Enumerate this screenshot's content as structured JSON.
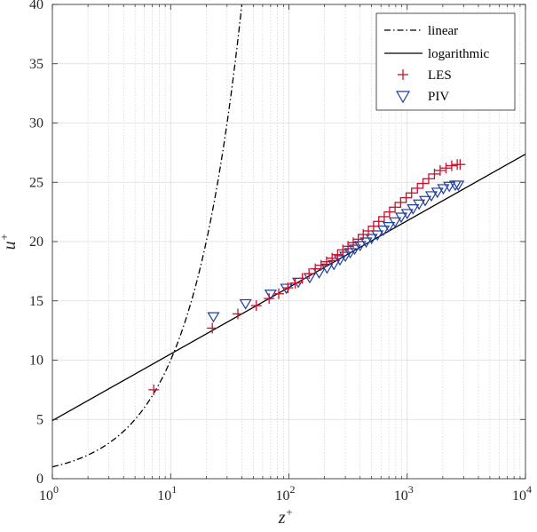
{
  "chart_data": {
    "type": "scatter",
    "xscale": "log",
    "xlim": [
      1,
      10000
    ],
    "ylim": [
      0,
      40
    ],
    "xlabel": "z",
    "xlabel_sup": "+",
    "ylabel": "u",
    "ylabel_sup": "+",
    "x_tick_exponents": [
      0,
      1,
      2,
      3,
      4
    ],
    "x_tick_base": "10",
    "y_ticks": [
      0,
      5,
      10,
      15,
      20,
      25,
      30,
      35,
      40
    ],
    "grid": true,
    "legend_position": "top-right",
    "colors": {
      "les": "#c8102e",
      "piv": "#1f3f9f",
      "linear": "#000000",
      "logarithmic": "#000000"
    },
    "series": [
      {
        "name": "linear",
        "kind": "line",
        "style": "dash-dot",
        "law": "u = z",
        "x_range": [
          1,
          40
        ]
      },
      {
        "name": "logarithmic",
        "kind": "line",
        "style": "solid",
        "law": "u = 2.44 ln(z) + 4.9",
        "x_range": [
          1,
          10000
        ]
      },
      {
        "name": "LES",
        "kind": "marker",
        "marker": "plus",
        "points": [
          [
            7.2,
            7.5
          ],
          [
            22.5,
            12.7
          ],
          [
            37,
            13.9
          ],
          [
            53,
            14.6
          ],
          [
            68,
            15.2
          ],
          [
            82,
            15.6
          ],
          [
            98,
            16.1
          ],
          [
            113,
            16.5
          ],
          [
            130,
            16.9
          ],
          [
            148,
            17.3
          ],
          [
            167,
            17.7
          ],
          [
            187,
            18.0
          ],
          [
            208,
            18.3
          ],
          [
            232,
            18.6
          ],
          [
            258,
            18.9
          ],
          [
            286,
            19.3
          ],
          [
            316,
            19.6
          ],
          [
            350,
            19.9
          ],
          [
            386,
            20.2
          ],
          [
            425,
            20.6
          ],
          [
            470,
            20.9
          ],
          [
            520,
            21.3
          ],
          [
            575,
            21.7
          ],
          [
            640,
            22.1
          ],
          [
            710,
            22.5
          ],
          [
            790,
            22.9
          ],
          [
            880,
            23.3
          ],
          [
            980,
            23.7
          ],
          [
            1090,
            24.1
          ],
          [
            1220,
            24.5
          ],
          [
            1360,
            24.9
          ],
          [
            1520,
            25.3
          ],
          [
            1700,
            25.7
          ],
          [
            1900,
            26.0
          ],
          [
            2130,
            26.2
          ],
          [
            2380,
            26.4
          ],
          [
            2650,
            26.5
          ],
          [
            2800,
            26.5
          ]
        ]
      },
      {
        "name": "PIV",
        "kind": "marker",
        "marker": "triangle-down",
        "points": [
          [
            23,
            13.7
          ],
          [
            43,
            14.8
          ],
          [
            70,
            15.6
          ],
          [
            95,
            16.1
          ],
          [
            120,
            16.6
          ],
          [
            150,
            17.0
          ],
          [
            180,
            17.4
          ],
          [
            210,
            17.8
          ],
          [
            240,
            18.1
          ],
          [
            270,
            18.5
          ],
          [
            300,
            18.8
          ],
          [
            330,
            19.1
          ],
          [
            360,
            19.4
          ],
          [
            400,
            19.7
          ],
          [
            450,
            20.0
          ],
          [
            500,
            20.3
          ],
          [
            560,
            20.6
          ],
          [
            630,
            21.0
          ],
          [
            700,
            21.3
          ],
          [
            790,
            21.7
          ],
          [
            890,
            22.1
          ],
          [
            1000,
            22.4
          ],
          [
            1120,
            22.8
          ],
          [
            1260,
            23.2
          ],
          [
            1420,
            23.5
          ],
          [
            1600,
            23.9
          ],
          [
            1800,
            24.2
          ],
          [
            2020,
            24.5
          ],
          [
            2270,
            24.7
          ],
          [
            2550,
            24.8
          ],
          [
            2700,
            24.8
          ]
        ]
      }
    ],
    "legend": [
      "linear",
      "logarithmic",
      "LES",
      "PIV"
    ]
  }
}
